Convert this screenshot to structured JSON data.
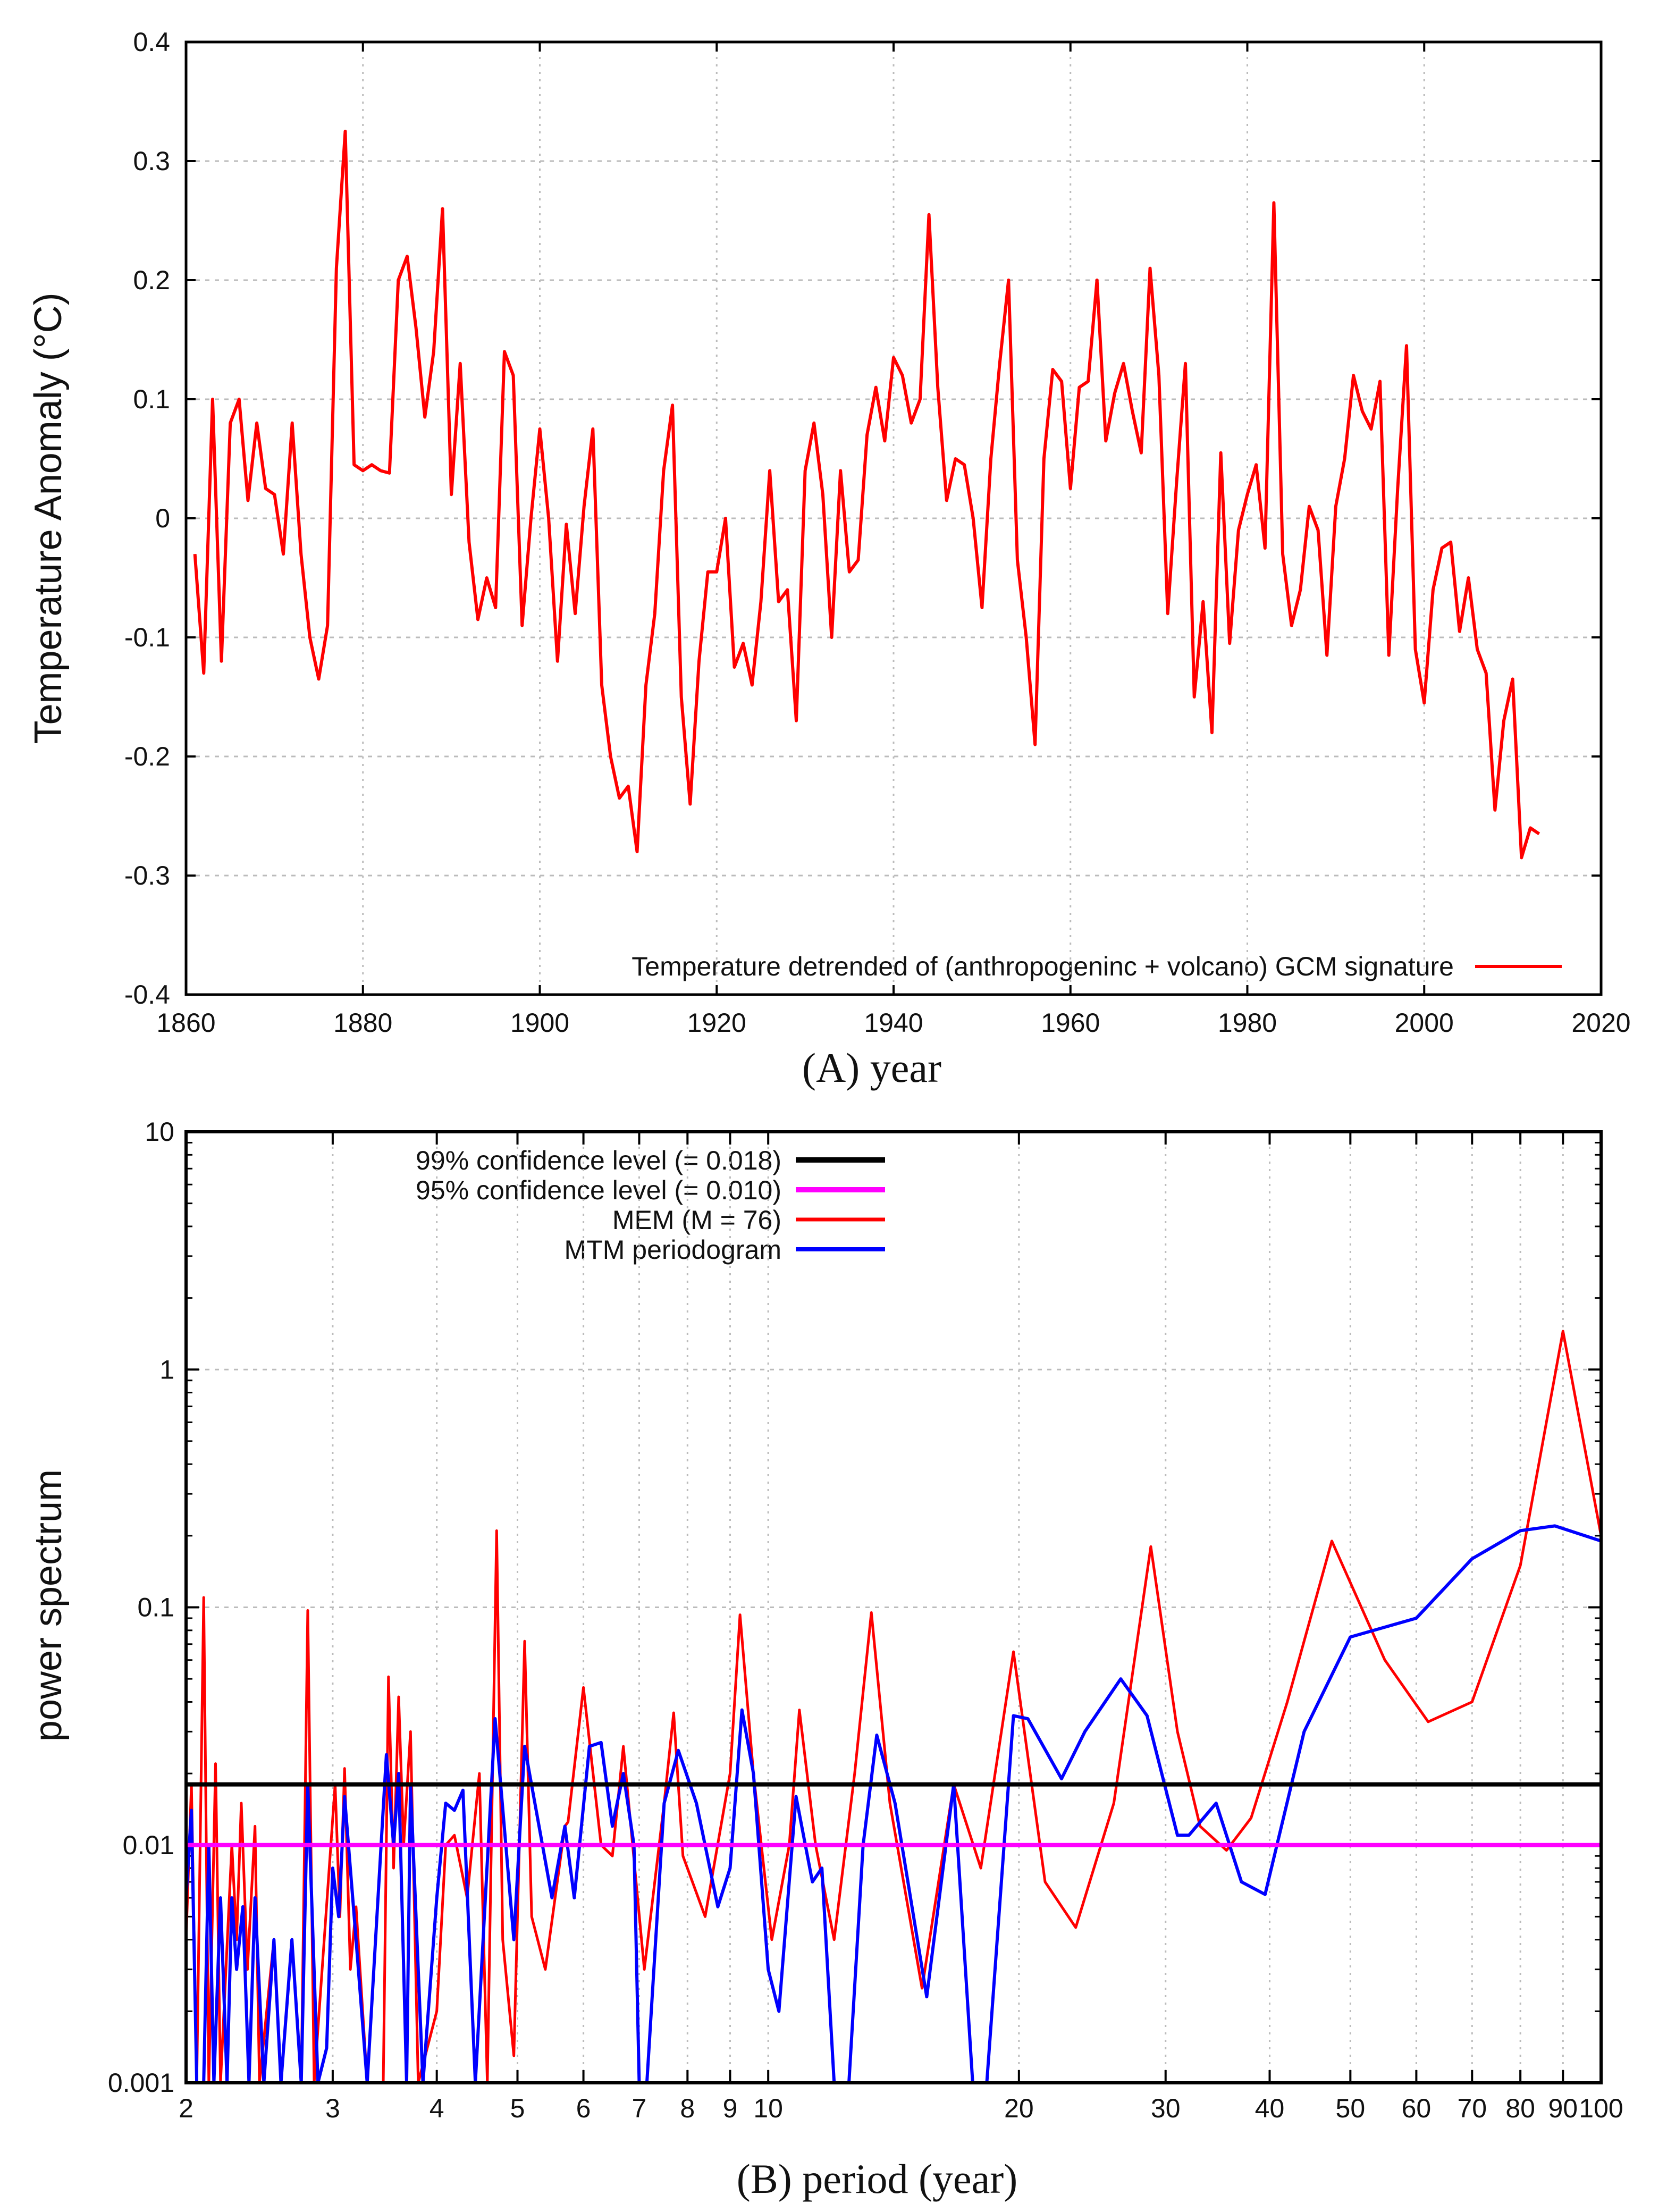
{
  "chart_data": [
    {
      "type": "line",
      "title": "",
      "xlabel": "(A) year",
      "ylabel": "Temperature Anomaly (°C)",
      "xlim": [
        1860,
        2020
      ],
      "ylim": [
        -0.4,
        0.4
      ],
      "x_ticks": [
        "1860",
        "1880",
        "1900",
        "1920",
        "1940",
        "1960",
        "1980",
        "2000",
        "2020"
      ],
      "y_ticks": [
        "-0.4",
        "-0.3",
        "-0.2",
        "-0.1",
        "0",
        "0.1",
        "0.2",
        "0.3",
        "0.4"
      ],
      "grid": true,
      "legend_position": "bottom-right",
      "series": [
        {
          "name": "Temperature detrended of (anthropogeninc + volcano) GCM signature",
          "color": "#ff0000",
          "x_start": 1861,
          "x_step": 1,
          "values": [
            -0.03,
            -0.13,
            0.1,
            -0.12,
            0.08,
            0.1,
            0.015,
            0.08,
            0.025,
            0.02,
            -0.03,
            0.08,
            -0.03,
            -0.1,
            -0.135,
            -0.09,
            0.21,
            0.325,
            0.045,
            0.04,
            0.045,
            0.04,
            0.038,
            0.2,
            0.22,
            0.16,
            0.085,
            0.14,
            0.26,
            0.02,
            0.13,
            -0.02,
            -0.085,
            -0.05,
            -0.075,
            0.14,
            0.12,
            -0.09,
            0.0,
            0.075,
            0.0,
            -0.12,
            -0.005,
            -0.08,
            0.01,
            0.075,
            -0.14,
            -0.2,
            -0.235,
            -0.225,
            -0.28,
            -0.14,
            -0.08,
            0.04,
            0.095,
            -0.15,
            -0.24,
            -0.12,
            -0.045,
            -0.045,
            0.0,
            -0.125,
            -0.105,
            -0.14,
            -0.07,
            0.04,
            -0.07,
            -0.06,
            -0.17,
            0.04,
            0.08,
            0.02,
            -0.1,
            0.04,
            -0.045,
            -0.035,
            0.07,
            0.11,
            0.065,
            0.135,
            0.12,
            0.08,
            0.1,
            0.255,
            0.11,
            0.015,
            0.05,
            0.045,
            0.0,
            -0.075,
            0.05,
            0.13,
            0.2,
            -0.035,
            -0.1,
            -0.19,
            0.05,
            0.125,
            0.115,
            0.025,
            0.11,
            0.115,
            0.2,
            0.065,
            0.105,
            0.13,
            0.09,
            0.055,
            0.21,
            0.12,
            -0.08,
            0.03,
            0.13,
            -0.15,
            -0.07,
            -0.18,
            0.055,
            -0.105,
            -0.01,
            0.02,
            0.045,
            -0.025,
            0.265,
            -0.03,
            -0.09,
            -0.06,
            0.01,
            -0.01,
            -0.115,
            0.01,
            0.05,
            0.12,
            0.09,
            0.075,
            0.115,
            -0.115,
            0.025,
            0.145,
            -0.11,
            -0.155,
            -0.06,
            -0.025,
            -0.02,
            -0.095,
            -0.05,
            -0.11,
            -0.13,
            -0.245,
            -0.17,
            -0.135,
            -0.285,
            -0.26,
            -0.265
          ]
        }
      ]
    },
    {
      "type": "line",
      "title": "",
      "xlabel": "(B) period (year)",
      "ylabel": "power spectrum",
      "xscale": "log",
      "yscale": "log",
      "xlim": [
        2,
        100
      ],
      "ylim": [
        0.001,
        10
      ],
      "x_ticks": [
        2,
        3,
        4,
        5,
        6,
        7,
        8,
        9,
        10,
        20,
        30,
        40,
        50,
        60,
        70,
        80,
        90,
        100
      ],
      "x_tick_labels": [
        "2",
        "3",
        "4",
        "5",
        "6",
        "7",
        "8",
        "9",
        "10",
        "20",
        "30",
        "40",
        "50",
        "60",
        "70",
        "80",
        "90",
        "100"
      ],
      "y_ticks": [
        0.001,
        0.01,
        0.1,
        1,
        10
      ],
      "y_tick_labels": [
        "0.001",
        "0.01",
        "0.1",
        "1",
        "10"
      ],
      "grid": true,
      "legend_position": "top-left",
      "series": [
        {
          "name": "99% confidence level (= 0.018)",
          "color": "#000000",
          "constant": 0.018
        },
        {
          "name": "95% confidence level (= 0.010)",
          "color": "#ff00ff",
          "constant": 0.01
        },
        {
          "name": "MEM (M = 76)",
          "color": "#ff0000",
          "points": [
            [
              2,
              0.004
            ],
            [
              2.03,
              0.018
            ],
            [
              2.06,
              0.001
            ],
            [
              2.1,
              0.11
            ],
            [
              2.13,
              0.001
            ],
            [
              2.17,
              0.022
            ],
            [
              2.2,
              0.001
            ],
            [
              2.27,
              0.01
            ],
            [
              2.3,
              0.004
            ],
            [
              2.33,
              0.015
            ],
            [
              2.37,
              0.003
            ],
            [
              2.42,
              0.012
            ],
            [
              2.45,
              0.001
            ],
            [
              2.55,
              0.004
            ],
            [
              2.6,
              0.001
            ],
            [
              2.75,
              0.001
            ],
            [
              2.8,
              0.097
            ],
            [
              2.85,
              0.001
            ],
            [
              3.02,
              0.018
            ],
            [
              3.06,
              0.005
            ],
            [
              3.1,
              0.021
            ],
            [
              3.15,
              0.003
            ],
            [
              3.2,
              0.0055
            ],
            [
              3.3,
              0.001
            ],
            [
              3.45,
              0.001
            ],
            [
              3.5,
              0.051
            ],
            [
              3.55,
              0.008
            ],
            [
              3.6,
              0.042
            ],
            [
              3.65,
              0.01
            ],
            [
              3.72,
              0.03
            ],
            [
              3.8,
              0.001
            ],
            [
              4.0,
              0.002
            ],
            [
              4.1,
              0.01
            ],
            [
              4.2,
              0.011
            ],
            [
              4.35,
              0.006
            ],
            [
              4.5,
              0.02
            ],
            [
              4.6,
              0.001
            ],
            [
              4.72,
              0.21
            ],
            [
              4.8,
              0.004
            ],
            [
              4.95,
              0.0013
            ],
            [
              5.1,
              0.072
            ],
            [
              5.2,
              0.005
            ],
            [
              5.4,
              0.003
            ],
            [
              5.7,
              0.012
            ],
            [
              5.75,
              0.0125
            ],
            [
              6.0,
              0.046
            ],
            [
              6.3,
              0.01
            ],
            [
              6.5,
              0.009
            ],
            [
              6.7,
              0.026
            ],
            [
              7.1,
              0.003
            ],
            [
              7.5,
              0.015
            ],
            [
              7.7,
              0.036
            ],
            [
              7.9,
              0.009
            ],
            [
              8.4,
              0.005
            ],
            [
              9.0,
              0.02
            ],
            [
              9.25,
              0.093
            ],
            [
              9.6,
              0.02
            ],
            [
              10.1,
              0.004
            ],
            [
              10.6,
              0.01
            ],
            [
              10.9,
              0.037
            ],
            [
              11.4,
              0.01
            ],
            [
              12.0,
              0.004
            ],
            [
              12.7,
              0.02
            ],
            [
              13.3,
              0.095
            ],
            [
              14.0,
              0.015
            ],
            [
              15.3,
              0.0025
            ],
            [
              16.7,
              0.018
            ],
            [
              18.0,
              0.008
            ],
            [
              19.7,
              0.065
            ],
            [
              21.5,
              0.007
            ],
            [
              23.4,
              0.0045
            ],
            [
              26.0,
              0.015
            ],
            [
              28.8,
              0.18
            ],
            [
              31,
              0.03
            ],
            [
              33,
              0.012
            ],
            [
              35.5,
              0.0095
            ],
            [
              38,
              0.013
            ],
            [
              42,
              0.04
            ],
            [
              47.5,
              0.19
            ],
            [
              55,
              0.06
            ],
            [
              62,
              0.033
            ],
            [
              70,
              0.04
            ],
            [
              80,
              0.15
            ],
            [
              90,
              1.45
            ],
            [
              100,
              0.2
            ]
          ]
        },
        {
          "name": "MTM periodogram",
          "color": "#0000ff",
          "points": [
            [
              2,
              0.006
            ],
            [
              2.03,
              0.014
            ],
            [
              2.06,
              0.001
            ],
            [
              2.1,
              0.001
            ],
            [
              2.13,
              0.01
            ],
            [
              2.16,
              0.001
            ],
            [
              2.2,
              0.006
            ],
            [
              2.24,
              0.001
            ],
            [
              2.27,
              0.006
            ],
            [
              2.3,
              0.003
            ],
            [
              2.34,
              0.0055
            ],
            [
              2.38,
              0.001
            ],
            [
              2.42,
              0.006
            ],
            [
              2.48,
              0.001
            ],
            [
              2.55,
              0.004
            ],
            [
              2.6,
              0.001
            ],
            [
              2.68,
              0.004
            ],
            [
              2.75,
              0.001
            ],
            [
              2.8,
              0.018
            ],
            [
              2.88,
              0.001
            ],
            [
              2.95,
              0.0014
            ],
            [
              3.0,
              0.008
            ],
            [
              3.05,
              0.005
            ],
            [
              3.1,
              0.016
            ],
            [
              3.2,
              0.004
            ],
            [
              3.3,
              0.001
            ],
            [
              3.48,
              0.024
            ],
            [
              3.55,
              0.01
            ],
            [
              3.6,
              0.02
            ],
            [
              3.68,
              0.001
            ],
            [
              3.72,
              0.018
            ],
            [
              3.85,
              0.001
            ],
            [
              4.0,
              0.006
            ],
            [
              4.1,
              0.015
            ],
            [
              4.2,
              0.014
            ],
            [
              4.3,
              0.017
            ],
            [
              4.45,
              0.001
            ],
            [
              4.7,
              0.034
            ],
            [
              4.95,
              0.004
            ],
            [
              5.1,
              0.026
            ],
            [
              5.5,
              0.006
            ],
            [
              5.7,
              0.012
            ],
            [
              5.85,
              0.006
            ],
            [
              6.1,
              0.026
            ],
            [
              6.3,
              0.027
            ],
            [
              6.5,
              0.012
            ],
            [
              6.7,
              0.02
            ],
            [
              6.9,
              0.01
            ],
            [
              7.0,
              0.001
            ],
            [
              7.15,
              0.001
            ],
            [
              7.5,
              0.015
            ],
            [
              7.8,
              0.025
            ],
            [
              8.2,
              0.015
            ],
            [
              8.7,
              0.0055
            ],
            [
              9.0,
              0.008
            ],
            [
              9.3,
              0.037
            ],
            [
              9.6,
              0.02
            ],
            [
              10.0,
              0.003
            ],
            [
              10.3,
              0.002
            ],
            [
              10.8,
              0.016
            ],
            [
              11.3,
              0.007
            ],
            [
              11.6,
              0.008
            ],
            [
              12.0,
              0.001
            ],
            [
              12.5,
              0.001
            ],
            [
              13.0,
              0.01
            ],
            [
              13.5,
              0.029
            ],
            [
              14.2,
              0.015
            ],
            [
              15.5,
              0.0023
            ],
            [
              16.7,
              0.018
            ],
            [
              17.6,
              0.001
            ],
            [
              18.3,
              0.001
            ],
            [
              19.7,
              0.035
            ],
            [
              20.5,
              0.034
            ],
            [
              22.5,
              0.019
            ],
            [
              24,
              0.03
            ],
            [
              26.5,
              0.05
            ],
            [
              28.5,
              0.035
            ],
            [
              31,
              0.011
            ],
            [
              32,
              0.011
            ],
            [
              34.5,
              0.015
            ],
            [
              37,
              0.007
            ],
            [
              39.5,
              0.0062
            ],
            [
              44,
              0.03
            ],
            [
              50,
              0.075
            ],
            [
              60,
              0.09
            ],
            [
              70,
              0.16
            ],
            [
              80,
              0.21
            ],
            [
              88,
              0.22
            ],
            [
              100,
              0.19
            ]
          ]
        }
      ]
    }
  ]
}
